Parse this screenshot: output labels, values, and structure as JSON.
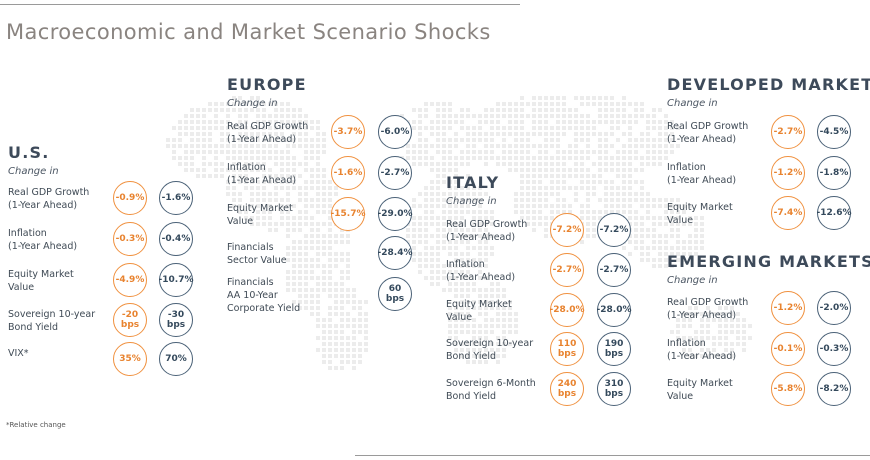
{
  "title": "Macroeconomic and Market Scenario Shocks",
  "footnote": "*Relative change",
  "change_in_label": "Change in",
  "colors": {
    "orange": "#f0913f",
    "blue": "#4a6177",
    "title": "#8a8480"
  },
  "us": {
    "heading": "U.S.",
    "rows": [
      {
        "label1": "Real GDP Growth",
        "label2": "(1-Year Ahead)",
        "v1": "-0.9%",
        "v2": "-1.6%"
      },
      {
        "label1": "Inflation",
        "label2": "(1-Year Ahead)",
        "v1": "-0.3%",
        "v2": "-0.4%"
      },
      {
        "label1": "Equity Market",
        "label2": "Value",
        "v1": "-4.9%",
        "v2": "-10.7%"
      },
      {
        "label1": "Sovereign 10-year",
        "label2": "Bond Yield",
        "v1": "-20",
        "v1b": "bps",
        "v2": "-30",
        "v2b": "bps"
      },
      {
        "label1": "VIX*",
        "label2": "",
        "v1": "35%",
        "v2": "70%"
      }
    ]
  },
  "europe": {
    "heading": "EUROPE",
    "rows": [
      {
        "label1": "Real GDP Growth",
        "label2": "(1-Year Ahead)",
        "v1": "-3.7%",
        "v2": "-6.0%"
      },
      {
        "label1": "Inflation",
        "label2": "(1-Year Ahead)",
        "v1": "-1.6%",
        "v2": "-2.7%"
      },
      {
        "label1": "Equity Market",
        "label2": "Value",
        "v1": "-15.7%",
        "v2": "-29.0%"
      },
      {
        "label1": "Financials",
        "label2": "Sector Value",
        "v2": "-28.4%"
      },
      {
        "label1": "Financials",
        "label2": "AA 10-Year",
        "label3": "Corporate Yield",
        "v2": "60",
        "v2b": "bps"
      }
    ]
  },
  "italy": {
    "heading": "ITALY",
    "rows": [
      {
        "label1": "Real GDP Growth",
        "label2": "(1-Year Ahead)",
        "v1": "-7.2%",
        "v2": "-7.2%"
      },
      {
        "label1": "Inflation",
        "label2": "(1-Year Ahead)",
        "v1": "-2.7%",
        "v2": "-2.7%"
      },
      {
        "label1": "Equity Market",
        "label2": "Value",
        "v1": "-28.0%",
        "v2": "-28.0%"
      },
      {
        "label1": "Sovereign 10-year",
        "label2": "Bond Yield",
        "v1": "110",
        "v1b": "bps",
        "v2": "190",
        "v2b": "bps"
      },
      {
        "label1": "Sovereign 6-Month",
        "label2": "Bond Yield",
        "v1": "240",
        "v1b": "bps",
        "v2": "310",
        "v2b": "bps"
      }
    ]
  },
  "developed": {
    "heading": "DEVELOPED MARKETS",
    "rows": [
      {
        "label1": "Real GDP Growth",
        "label2": "(1-Year Ahead)",
        "v1": "-2.7%",
        "v2": "-4.5%"
      },
      {
        "label1": "Inflation",
        "label2": "(1-Year Ahead)",
        "v1": "-1.2%",
        "v2": "-1.8%"
      },
      {
        "label1": "Equity Market",
        "label2": "Value",
        "v1": "-7.4%",
        "v2": "-12.6%"
      }
    ]
  },
  "emerging": {
    "heading": "EMERGING MARKETS",
    "rows": [
      {
        "label1": "Real GDP Growth",
        "label2": "(1-Year Ahead)",
        "v1": "-1.2%",
        "v2": "-2.0%"
      },
      {
        "label1": "Inflation",
        "label2": "(1-Year Ahead)",
        "v1": "-0.1%",
        "v2": "-0.3%"
      },
      {
        "label1": "Equity Market",
        "label2": "Value",
        "v1": "-5.8%",
        "v2": "-8.2%"
      }
    ]
  }
}
